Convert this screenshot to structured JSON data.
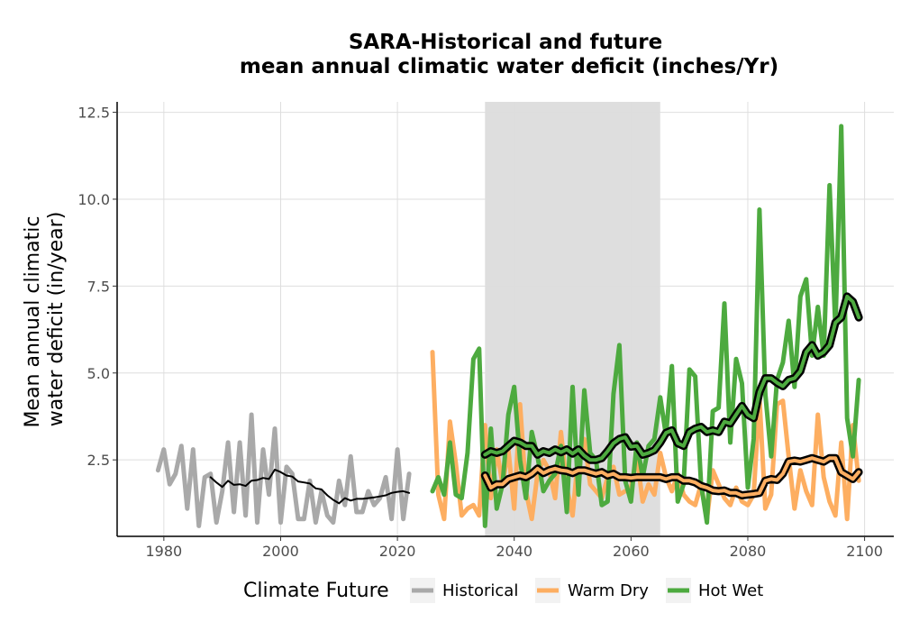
{
  "chart_data": {
    "type": "line",
    "title": "SARA-Historical and future\nmean annual climatic water deficit (inches/Yr)",
    "title_lines": [
      "SARA-Historical and future",
      "mean annual climatic water deficit (inches/Yr)"
    ],
    "xlabel": "",
    "ylabel": "Mean annual climatic\nwater deficit (in/year)",
    "ylabel_lines": [
      "Mean annual climatic",
      "water deficit (in/year)"
    ],
    "xlim": [
      1972,
      2105
    ],
    "ylim": [
      0.3,
      12.8
    ],
    "xticks": [
      1980,
      2000,
      2020,
      2040,
      2060,
      2080,
      2100
    ],
    "xtick_labels": [
      "1980",
      "2000",
      "2020",
      "2040",
      "2060",
      "2080",
      "2100"
    ],
    "yticks": [
      2.5,
      5.0,
      7.5,
      10.0,
      12.5
    ],
    "ytick_labels": [
      "2.5",
      "5.0",
      "7.5",
      "10.0",
      "12.5"
    ],
    "grid": true,
    "shaded_period": [
      2035,
      2065
    ],
    "shaded_color": "#dcdcdc",
    "legend": {
      "title": "Climate Future",
      "placement": "bottom",
      "entries": [
        "Historical",
        "Warm Dry",
        "Hot Wet"
      ]
    },
    "series": [
      {
        "name": "Historical",
        "color": "#a9a9a9",
        "x": [
          1979,
          1980,
          1981,
          1982,
          1983,
          1984,
          1985,
          1986,
          1987,
          1988,
          1989,
          1990,
          1991,
          1992,
          1993,
          1994,
          1995,
          1996,
          1997,
          1998,
          1999,
          2000,
          2001,
          2002,
          2003,
          2004,
          2005,
          2006,
          2007,
          2008,
          2009,
          2010,
          2011,
          2012,
          2013,
          2014,
          2015,
          2016,
          2017,
          2018,
          2019,
          2020,
          2021,
          2022
        ],
        "values": [
          2.2,
          2.8,
          1.8,
          2.1,
          2.9,
          1.1,
          2.8,
          0.6,
          2.0,
          2.1,
          0.7,
          1.6,
          3.0,
          1.0,
          3.0,
          0.9,
          3.8,
          0.7,
          2.8,
          1.5,
          3.4,
          0.7,
          2.3,
          2.1,
          0.8,
          0.8,
          1.9,
          0.7,
          1.6,
          0.9,
          0.7,
          1.9,
          1.2,
          2.6,
          1.0,
          1.0,
          1.6,
          1.2,
          1.4,
          2.0,
          0.8,
          2.8,
          0.8,
          2.1
        ]
      },
      {
        "name": "Warm Dry",
        "color": "#fdae61",
        "x": [
          2026,
          2027,
          2028,
          2029,
          2030,
          2031,
          2032,
          2033,
          2034,
          2035,
          2036,
          2037,
          2038,
          2039,
          2040,
          2041,
          2042,
          2043,
          2044,
          2045,
          2046,
          2047,
          2048,
          2049,
          2050,
          2051,
          2052,
          2053,
          2054,
          2055,
          2056,
          2057,
          2058,
          2059,
          2060,
          2061,
          2062,
          2063,
          2064,
          2065,
          2066,
          2067,
          2068,
          2069,
          2070,
          2071,
          2072,
          2073,
          2074,
          2075,
          2076,
          2077,
          2078,
          2079,
          2080,
          2081,
          2082,
          2083,
          2084,
          2085,
          2086,
          2087,
          2088,
          2089,
          2090,
          2091,
          2092,
          2093,
          2094,
          2095,
          2096,
          2097,
          2098,
          2099
        ],
        "values": [
          5.6,
          1.5,
          0.8,
          3.6,
          2.4,
          0.9,
          1.1,
          1.2,
          0.9,
          3.5,
          1.4,
          2.8,
          1.8,
          2.8,
          1.1,
          4.1,
          1.6,
          0.8,
          2.1,
          2.5,
          2.2,
          1.4,
          3.3,
          1.7,
          0.9,
          2.7,
          3.1,
          1.8,
          1.6,
          1.4,
          2.0,
          2.3,
          1.5,
          1.6,
          1.7,
          2.6,
          1.3,
          1.8,
          1.5,
          2.7,
          2.0,
          1.6,
          2.1,
          1.5,
          1.3,
          1.2,
          1.8,
          0.8,
          2.2,
          1.8,
          1.4,
          1.2,
          1.7,
          1.3,
          1.2,
          1.5,
          4.3,
          1.1,
          1.5,
          4.1,
          4.2,
          2.6,
          1.1,
          2.2,
          1.6,
          1.2,
          3.8,
          2.0,
          1.3,
          0.9,
          3.0,
          0.8,
          3.5,
          1.9
        ]
      },
      {
        "name": "Hot Wet",
        "color": "#4daa3f",
        "x": [
          2026,
          2027,
          2028,
          2029,
          2030,
          2031,
          2032,
          2033,
          2034,
          2035,
          2036,
          2037,
          2038,
          2039,
          2040,
          2041,
          2042,
          2043,
          2044,
          2045,
          2046,
          2047,
          2048,
          2049,
          2050,
          2051,
          2052,
          2053,
          2054,
          2055,
          2056,
          2057,
          2058,
          2059,
          2060,
          2061,
          2062,
          2063,
          2064,
          2065,
          2066,
          2067,
          2068,
          2069,
          2070,
          2071,
          2072,
          2073,
          2074,
          2075,
          2076,
          2077,
          2078,
          2079,
          2080,
          2081,
          2082,
          2083,
          2084,
          2085,
          2086,
          2087,
          2088,
          2089,
          2090,
          2091,
          2092,
          2093,
          2094,
          2095,
          2096,
          2097,
          2098,
          2099
        ],
        "values": [
          1.6,
          2.0,
          1.5,
          3.0,
          1.5,
          1.4,
          2.7,
          5.4,
          5.7,
          0.6,
          3.4,
          1.1,
          1.8,
          3.8,
          4.6,
          2.5,
          1.4,
          3.3,
          2.6,
          1.6,
          1.9,
          2.1,
          2.9,
          1.0,
          4.6,
          1.5,
          4.5,
          2.7,
          2.5,
          1.2,
          1.3,
          4.4,
          5.8,
          1.9,
          1.3,
          3.0,
          2.0,
          2.9,
          3.1,
          4.3,
          3.2,
          5.2,
          1.3,
          1.8,
          5.1,
          4.9,
          1.8,
          0.7,
          3.9,
          4.0,
          7.0,
          3.0,
          5.4,
          4.7,
          1.7,
          3.1,
          9.7,
          4.4,
          2.6,
          4.8,
          5.3,
          6.5,
          4.6,
          7.2,
          7.7,
          5.5,
          6.9,
          5.5,
          10.4,
          6.3,
          12.1,
          3.7,
          2.6,
          4.8
        ]
      },
      {
        "name": "Historical",
        "role": "moving-average",
        "color": "#000000",
        "x": [
          1988,
          1989,
          1990,
          1991,
          1992,
          1993,
          1994,
          1995,
          1996,
          1997,
          1998,
          1999,
          2000,
          2001,
          2002,
          2003,
          2004,
          2005,
          2006,
          2007,
          2008,
          2009,
          2010,
          2011,
          2012,
          2013,
          2014,
          2015,
          2016,
          2017,
          2018,
          2019,
          2020,
          2021,
          2022
        ],
        "values": [
          2.0,
          1.85,
          1.72,
          1.9,
          1.78,
          1.8,
          1.75,
          1.9,
          1.92,
          1.98,
          1.95,
          2.22,
          2.15,
          2.05,
          2.02,
          1.88,
          1.85,
          1.82,
          1.68,
          1.65,
          1.48,
          1.35,
          1.25,
          1.4,
          1.33,
          1.38,
          1.38,
          1.4,
          1.42,
          1.45,
          1.48,
          1.55,
          1.58,
          1.6,
          1.55
        ]
      },
      {
        "name": "Warm Dry",
        "role": "moving-average",
        "color": "#000000",
        "fill": "#fdae61",
        "x": [
          2035,
          2036,
          2037,
          2038,
          2039,
          2040,
          2041,
          2042,
          2043,
          2044,
          2045,
          2046,
          2047,
          2048,
          2049,
          2050,
          2051,
          2052,
          2053,
          2054,
          2055,
          2056,
          2057,
          2058,
          2059,
          2060,
          2061,
          2062,
          2063,
          2064,
          2065,
          2066,
          2067,
          2068,
          2069,
          2070,
          2071,
          2072,
          2073,
          2074,
          2075,
          2076,
          2077,
          2078,
          2079,
          2080,
          2081,
          2082,
          2083,
          2084,
          2085,
          2086,
          2087,
          2088,
          2089,
          2090,
          2091,
          2092,
          2093,
          2094,
          2095,
          2096,
          2097,
          2098,
          2099
        ],
        "values": [
          2.05,
          1.7,
          1.8,
          1.8,
          1.95,
          2.0,
          2.05,
          2.0,
          2.1,
          2.25,
          2.12,
          2.2,
          2.25,
          2.2,
          2.18,
          2.12,
          2.2,
          2.2,
          2.15,
          2.1,
          2.15,
          2.05,
          2.1,
          2.0,
          2.0,
          1.98,
          2.0,
          2.0,
          2.0,
          2.0,
          2.0,
          1.95,
          2.0,
          2.0,
          1.9,
          1.9,
          1.85,
          1.75,
          1.7,
          1.62,
          1.6,
          1.62,
          1.55,
          1.55,
          1.48,
          1.5,
          1.52,
          1.55,
          1.9,
          1.95,
          1.92,
          2.1,
          2.45,
          2.48,
          2.45,
          2.5,
          2.55,
          2.5,
          2.45,
          2.55,
          2.55,
          2.15,
          2.05,
          1.95,
          2.15
        ]
      },
      {
        "name": "Hot Wet",
        "role": "moving-average",
        "color": "#000000",
        "fill": "#4daa3f",
        "x": [
          2035,
          2036,
          2037,
          2038,
          2039,
          2040,
          2041,
          2042,
          2043,
          2044,
          2045,
          2046,
          2047,
          2048,
          2049,
          2050,
          2051,
          2052,
          2053,
          2054,
          2055,
          2056,
          2057,
          2058,
          2059,
          2060,
          2061,
          2062,
          2063,
          2064,
          2065,
          2066,
          2067,
          2068,
          2069,
          2070,
          2071,
          2072,
          2073,
          2074,
          2075,
          2076,
          2077,
          2078,
          2079,
          2080,
          2081,
          2082,
          2083,
          2084,
          2085,
          2086,
          2087,
          2088,
          2089,
          2090,
          2091,
          2092,
          2093,
          2094,
          2095,
          2096,
          2097,
          2098,
          2099
        ],
        "values": [
          2.65,
          2.75,
          2.7,
          2.75,
          2.9,
          3.05,
          3.0,
          2.9,
          2.9,
          2.65,
          2.75,
          2.7,
          2.8,
          2.72,
          2.8,
          2.68,
          2.8,
          2.62,
          2.5,
          2.5,
          2.55,
          2.75,
          2.98,
          3.1,
          3.15,
          2.88,
          2.9,
          2.65,
          2.7,
          2.78,
          3.0,
          3.28,
          3.35,
          2.98,
          2.9,
          3.3,
          3.4,
          3.45,
          3.3,
          3.35,
          3.3,
          3.6,
          3.55,
          3.8,
          4.05,
          3.8,
          3.7,
          4.45,
          4.85,
          4.85,
          4.72,
          4.62,
          4.8,
          4.85,
          5.05,
          5.6,
          5.8,
          5.5,
          5.6,
          5.8,
          6.45,
          6.6,
          7.2,
          7.05,
          6.6
        ]
      }
    ]
  }
}
